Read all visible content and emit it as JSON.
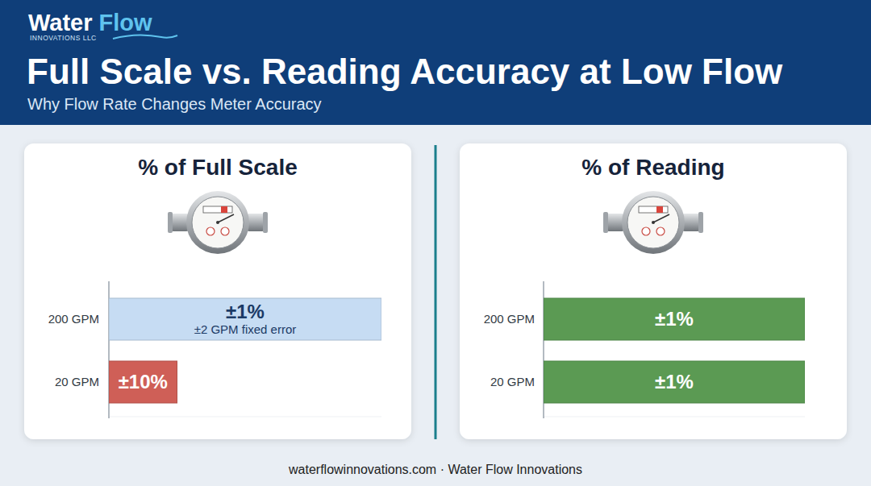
{
  "header": {
    "brand": "Water Flow",
    "brand_sub": "INNOVATIONS LLC",
    "title": "Full Scale vs. Reading Accuracy at Low Flow",
    "subtitle": "Why Flow Rate Changes Meter Accuracy"
  },
  "chart_data": [
    {
      "type": "bar",
      "orientation": "horizontal",
      "title": "% of Full Scale",
      "categories": [
        "200 GPM",
        "20 GPM"
      ],
      "values": [
        100,
        25
      ],
      "colors": [
        "#c6dcf3",
        "#cf5f57"
      ],
      "xlim": [
        0,
        100
      ],
      "tick_labels": "y",
      "annotations": [
        {
          "text": "±1%",
          "subtext": "±2 GPM fixed error"
        },
        {
          "text": "±10%"
        }
      ]
    },
    {
      "type": "bar",
      "orientation": "horizontal",
      "title": "% of Reading",
      "categories": [
        "200 GPM",
        "20 GPM"
      ],
      "values": [
        100,
        100
      ],
      "color": "#5b9a53",
      "xlim": [
        0,
        100
      ],
      "tick_labels": "y",
      "annotations": [
        {
          "text": "±1%"
        },
        {
          "text": "±1%"
        }
      ]
    }
  ],
  "footer": "waterflowinnovations.com · Water Flow Innovations"
}
